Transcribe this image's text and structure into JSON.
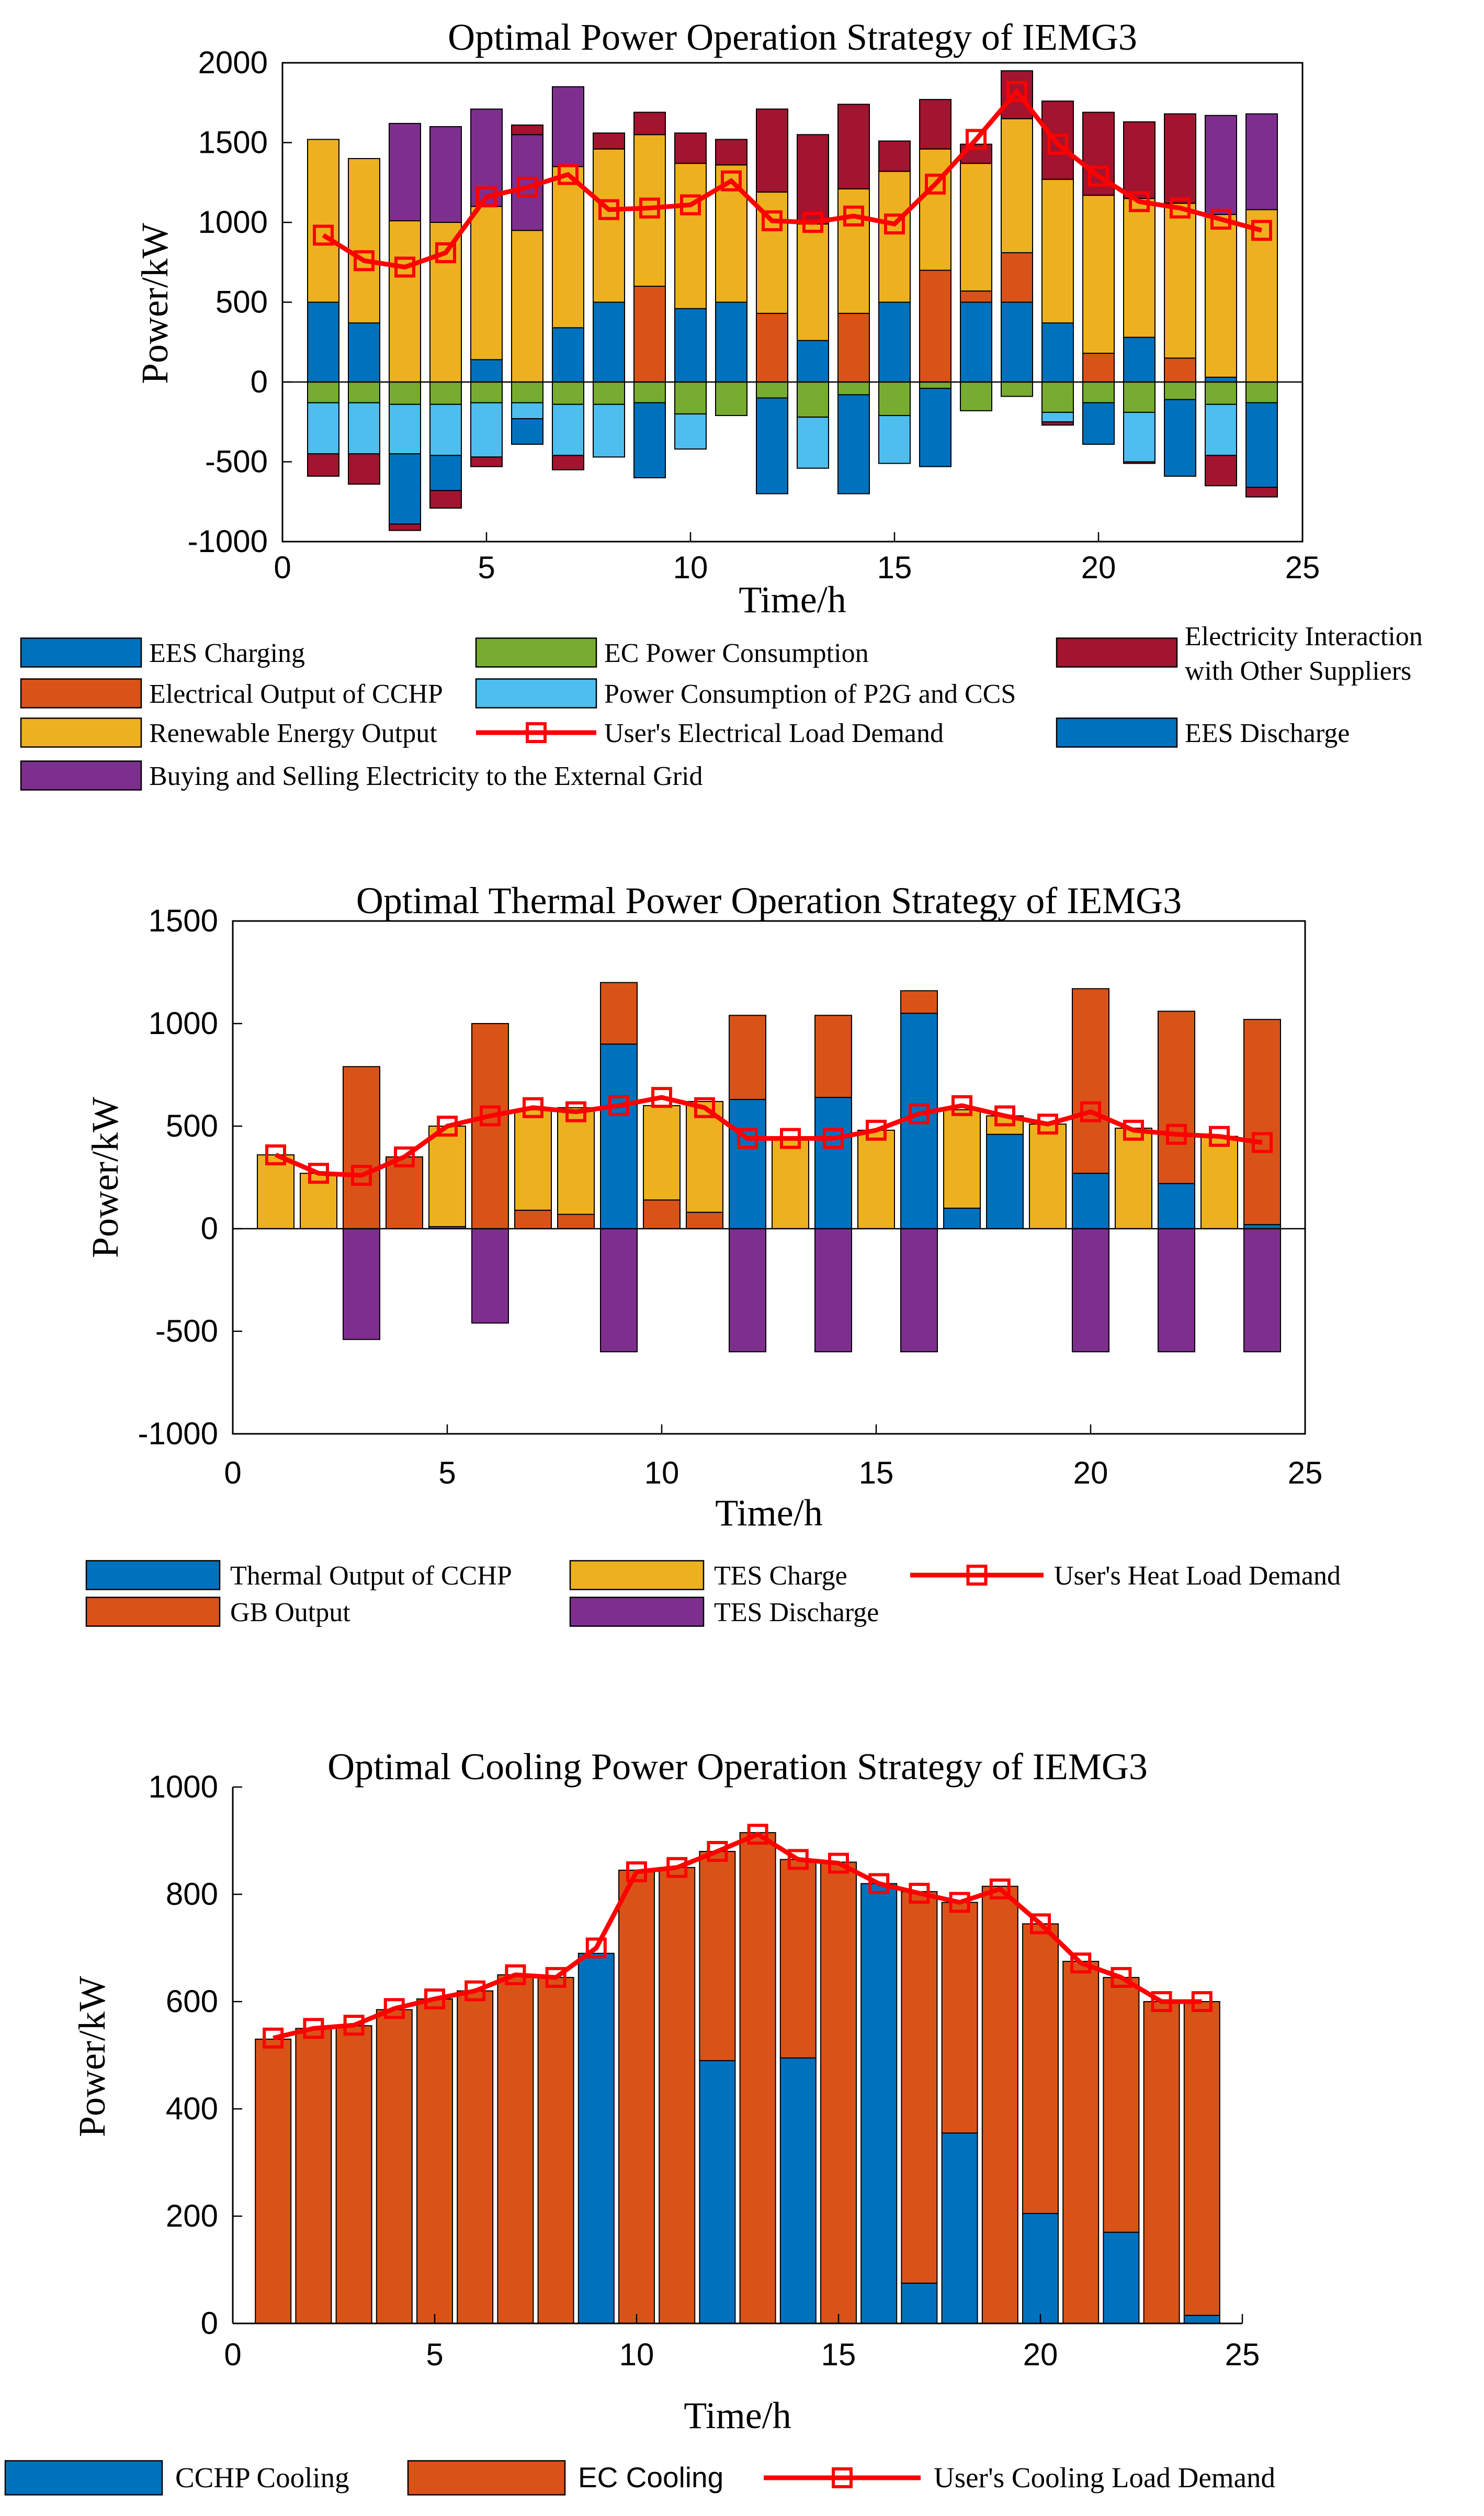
{
  "colors": {
    "blue": "#0072BD",
    "orange": "#D95319",
    "yellow": "#EDB120",
    "purple": "#7E2F8E",
    "green": "#77AC30",
    "cyan": "#4DBEEE",
    "darkred": "#A2142F",
    "red": "#FF0000"
  },
  "chart_data": [
    {
      "type": "bar",
      "title": "Optimal Power Operation Strategy of IEMG3",
      "xlabel": "Time/h",
      "ylabel": "Power/kW",
      "xlim": [
        0,
        25
      ],
      "ylim": [
        -1000,
        2000
      ],
      "xticks": [
        0,
        5,
        10,
        15,
        20,
        25
      ],
      "yticks": [
        -1000,
        -500,
        0,
        500,
        1000,
        1500,
        2000
      ],
      "x": [
        1,
        2,
        3,
        4,
        5,
        6,
        7,
        8,
        9,
        10,
        11,
        12,
        13,
        14,
        15,
        16,
        17,
        18,
        19,
        20,
        21,
        22,
        23,
        24
      ],
      "positive_stack": [
        {
          "name": "EES Discharge",
          "color": "blue",
          "values": [
            500,
            370,
            0,
            0,
            140,
            0,
            340,
            500,
            0,
            460,
            500,
            0,
            260,
            0,
            500,
            0,
            500,
            500,
            370,
            0,
            280,
            0,
            30,
            0
          ]
        },
        {
          "name": "Electrical Output of CCHP",
          "color": "orange",
          "values": [
            0,
            0,
            0,
            0,
            0,
            0,
            0,
            0,
            600,
            0,
            0,
            430,
            0,
            430,
            0,
            700,
            70,
            310,
            0,
            180,
            0,
            150,
            0,
            0
          ]
        },
        {
          "name": "Renewable Energy Output",
          "color": "yellow",
          "values": [
            1020,
            1030,
            1010,
            1000,
            960,
            950,
            1010,
            960,
            950,
            910,
            860,
            760,
            730,
            780,
            820,
            760,
            800,
            840,
            900,
            990,
            870,
            970,
            1020,
            1080
          ]
        },
        {
          "name": "Buying and Selling Electricity to the External Grid",
          "color": "purple",
          "values": [
            0,
            0,
            610,
            600,
            610,
            600,
            500,
            0,
            0,
            0,
            0,
            0,
            0,
            0,
            0,
            0,
            0,
            0,
            0,
            0,
            0,
            0,
            620,
            600
          ]
        },
        {
          "name": "Electricity Interaction with Other Suppliers",
          "color": "darkred",
          "values": [
            0,
            0,
            0,
            0,
            0,
            60,
            0,
            100,
            140,
            190,
            160,
            520,
            560,
            530,
            190,
            310,
            120,
            300,
            490,
            520,
            480,
            560,
            0,
            0
          ]
        }
      ],
      "negative_stack": [
        {
          "name": "EC Power Consumption",
          "color": "green",
          "values": [
            -130,
            -130,
            -140,
            -140,
            -130,
            -130,
            -140,
            -140,
            -130,
            -200,
            -210,
            -100,
            -220,
            -80,
            -210,
            -40,
            -180,
            -90,
            -190,
            -130,
            -190,
            -110,
            -140,
            -130
          ]
        },
        {
          "name": "Power Consumption of P2G and CCS",
          "color": "cyan",
          "values": [
            -320,
            -320,
            -310,
            -320,
            -340,
            -100,
            -320,
            -330,
            0,
            -220,
            0,
            0,
            -320,
            0,
            -300,
            0,
            0,
            0,
            -60,
            0,
            -310,
            0,
            -320,
            0
          ]
        },
        {
          "name": "EES Charging",
          "color": "blue",
          "values": [
            0,
            0,
            -440,
            -220,
            0,
            -160,
            0,
            0,
            -470,
            0,
            0,
            -600,
            0,
            -620,
            0,
            -490,
            0,
            0,
            0,
            -260,
            0,
            -480,
            0,
            -530
          ]
        },
        {
          "name": "Electricity Interaction with Other Suppliers (neg)",
          "color": "darkred",
          "values": [
            -140,
            -190,
            -40,
            -110,
            -60,
            0,
            -90,
            0,
            0,
            0,
            0,
            0,
            0,
            0,
            0,
            0,
            0,
            0,
            -20,
            0,
            -10,
            0,
            -190,
            -60
          ]
        }
      ],
      "line": {
        "name": "User's Electrical Load Demand",
        "color": "red",
        "values": [
          920,
          760,
          720,
          810,
          1160,
          1220,
          1300,
          1080,
          1090,
          1110,
          1260,
          1010,
          1000,
          1040,
          990,
          1240,
          1520,
          1820,
          1490,
          1290,
          1130,
          1090,
          1020,
          950
        ]
      },
      "legend": [
        {
          "label": "EES Charging",
          "color": "blue",
          "kind": "box"
        },
        {
          "label": "EC Power Consumption",
          "color": "green",
          "kind": "box"
        },
        {
          "label": "Electricity Interaction",
          "label2": "with Other Suppliers",
          "color": "darkred",
          "kind": "box"
        },
        {
          "label": "Electrical Output of CCHP",
          "color": "orange",
          "kind": "box"
        },
        {
          "label": "Power Consumption of P2G and CCS",
          "color": "cyan",
          "kind": "box"
        },
        {
          "label": "Renewable Energy Output",
          "color": "yellow",
          "kind": "box"
        },
        {
          "label": "User's Electrical Load Demand",
          "color": "red",
          "kind": "line"
        },
        {
          "label": "EES Discharge",
          "color": "blue",
          "kind": "box"
        },
        {
          "label": "Buying and Selling Electricity to the External Grid",
          "color": "purple",
          "kind": "box"
        }
      ]
    },
    {
      "type": "bar",
      "title": "Optimal Thermal Power Operation Strategy of IEMG3",
      "xlabel": "Time/h",
      "ylabel": "Power/kW",
      "xlim": [
        0,
        25
      ],
      "ylim": [
        -1000,
        1500
      ],
      "xticks": [
        0,
        5,
        10,
        15,
        20,
        25
      ],
      "yticks": [
        -1000,
        -500,
        0,
        500,
        1000,
        1500
      ],
      "x": [
        1,
        2,
        3,
        4,
        5,
        6,
        7,
        8,
        9,
        10,
        11,
        12,
        13,
        14,
        15,
        16,
        17,
        18,
        19,
        20,
        21,
        22,
        23,
        24
      ],
      "positive_stack": [
        {
          "name": "Thermal Output of CCHP",
          "color": "blue",
          "values": [
            0,
            0,
            0,
            0,
            10,
            0,
            0,
            0,
            900,
            0,
            0,
            630,
            0,
            640,
            0,
            1050,
            100,
            460,
            0,
            270,
            0,
            220,
            0,
            20
          ]
        },
        {
          "name": "GB Output",
          "color": "orange",
          "values": [
            0,
            0,
            790,
            350,
            0,
            1000,
            90,
            70,
            0,
            140,
            80,
            410,
            0,
            400,
            0,
            110,
            0,
            0,
            0,
            900,
            0,
            840,
            0,
            1000
          ]
        },
        {
          "name": "TES Charge",
          "color": "yellow",
          "values": [
            360,
            270,
            0,
            0,
            490,
            0,
            490,
            520,
            0,
            460,
            540,
            0,
            440,
            0,
            480,
            0,
            480,
            90,
            510,
            0,
            490,
            0,
            450,
            0
          ]
        },
        {
          "name": "GB Output (top)",
          "color": "orange",
          "values": [
            0,
            0,
            0,
            0,
            0,
            0,
            0,
            0,
            300,
            0,
            0,
            0,
            0,
            0,
            0,
            0,
            0,
            0,
            0,
            0,
            0,
            0,
            0,
            0
          ]
        }
      ],
      "negative_stack": [
        {
          "name": "TES Discharge",
          "color": "purple",
          "values": [
            0,
            0,
            -540,
            0,
            0,
            -460,
            0,
            0,
            -600,
            0,
            0,
            -600,
            0,
            -600,
            0,
            -600,
            0,
            0,
            0,
            -600,
            0,
            -600,
            0,
            -600
          ]
        }
      ],
      "line": {
        "name": "User's Heat Load Demand",
        "color": "red",
        "values": [
          360,
          270,
          260,
          350,
          500,
          550,
          590,
          570,
          600,
          640,
          590,
          440,
          440,
          440,
          480,
          560,
          600,
          550,
          510,
          570,
          480,
          460,
          450,
          420
        ]
      },
      "legend": [
        {
          "label": "Thermal Output of CCHP",
          "color": "blue",
          "kind": "box"
        },
        {
          "label": "TES Charge",
          "color": "yellow",
          "kind": "box"
        },
        {
          "label": "User's Heat Load Demand",
          "color": "red",
          "kind": "line"
        },
        {
          "label": "GB Output",
          "color": "orange",
          "kind": "box"
        },
        {
          "label": "TES Discharge",
          "color": "purple",
          "kind": "box"
        }
      ]
    },
    {
      "type": "bar",
      "title": "Optimal Cooling Power Operation Strategy of IEMG3",
      "xlabel": "Time/h",
      "ylabel": "Power/kW",
      "xlim": [
        0,
        25
      ],
      "ylim": [
        0,
        1000
      ],
      "xticks": [
        0,
        5,
        10,
        15,
        20,
        25
      ],
      "yticks": [
        0,
        200,
        400,
        600,
        800,
        1000
      ],
      "x": [
        1,
        2,
        3,
        4,
        5,
        6,
        7,
        8,
        9,
        10,
        11,
        12,
        13,
        14,
        15,
        16,
        17,
        18,
        19,
        20,
        21,
        22,
        23,
        24
      ],
      "positive_stack": [
        {
          "name": "CCHP Cooling",
          "color": "blue",
          "values": [
            0,
            0,
            0,
            0,
            0,
            0,
            0,
            0,
            690,
            0,
            0,
            490,
            0,
            495,
            0,
            820,
            75,
            355,
            0,
            205,
            0,
            170,
            0,
            15
          ]
        },
        {
          "name": "EC Cooling",
          "color": "orange",
          "values": [
            530,
            550,
            555,
            585,
            605,
            620,
            650,
            645,
            0,
            845,
            850,
            390,
            915,
            370,
            860,
            0,
            730,
            430,
            815,
            540,
            675,
            475,
            600,
            585
          ]
        }
      ],
      "negative_stack": [],
      "line": {
        "name": "User's Cooling Load Demand",
        "color": "red",
        "values": [
          532,
          550,
          556,
          587,
          605,
          620,
          650,
          645,
          700,
          842,
          850,
          880,
          912,
          865,
          858,
          820,
          802,
          785,
          810,
          745,
          672,
          645,
          600,
          600
        ]
      },
      "legend": [
        {
          "label": "CCHP Cooling",
          "color": "blue",
          "kind": "box"
        },
        {
          "label": "EC Cooling",
          "color": "orange",
          "kind": "box"
        },
        {
          "label": "User's Cooling Load Demand",
          "color": "red",
          "kind": "line"
        }
      ]
    }
  ]
}
